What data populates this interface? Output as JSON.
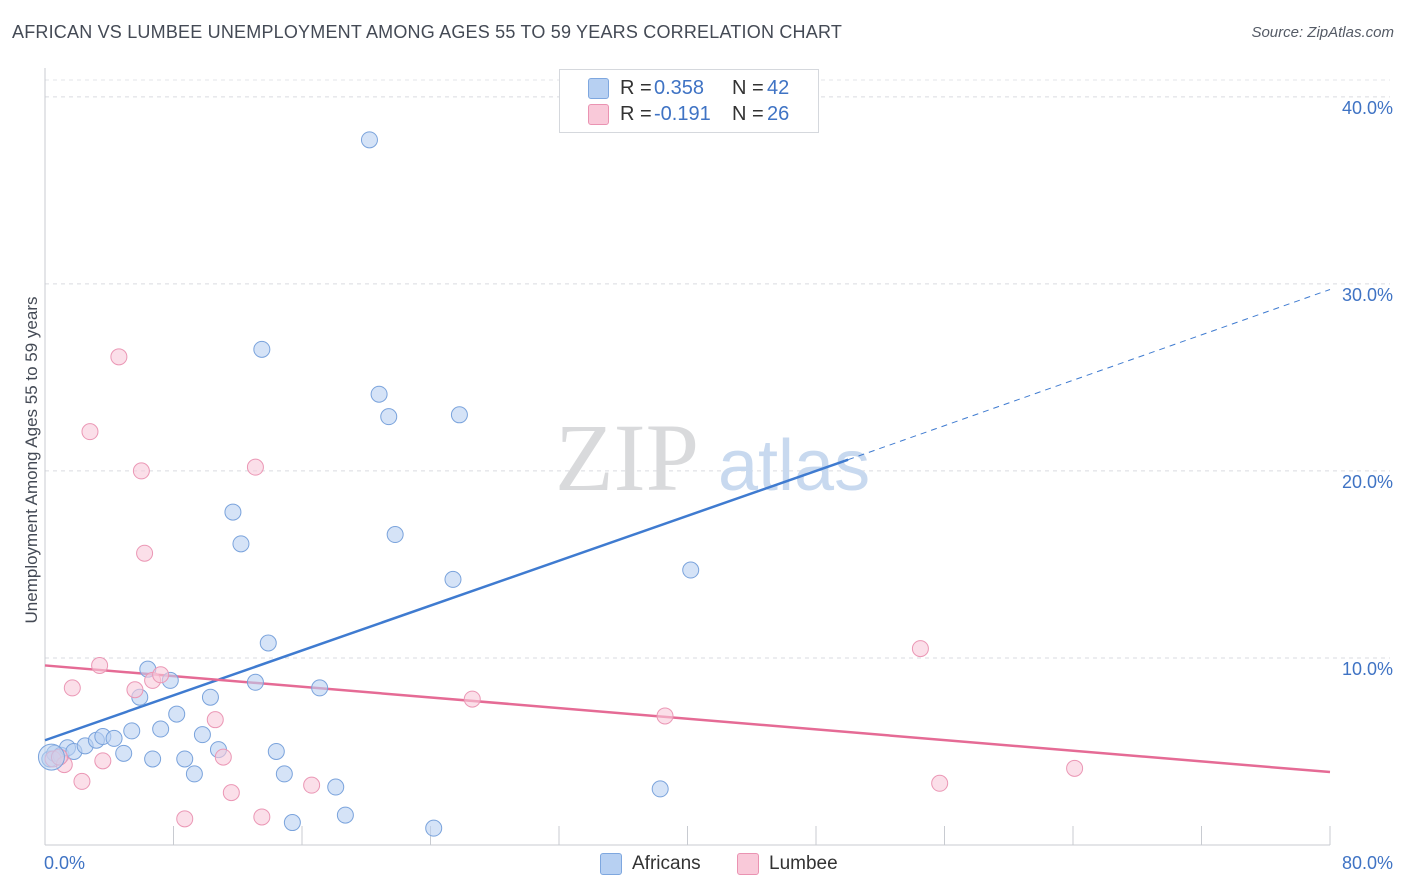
{
  "title": "AFRICAN VS LUMBEE UNEMPLOYMENT AMONG AGES 55 TO 59 YEARS CORRELATION CHART",
  "source": "Source: ZipAtlas.com",
  "watermark": {
    "zip": "ZIP",
    "atlas": "atlas"
  },
  "colors": {
    "africans": "#3f7bd0",
    "lumbee": "#e56b95",
    "africans_fill": "#aac8f0",
    "lumbee_fill": "#f6bcd0",
    "axis_text": "#3f73c4"
  },
  "legend": {
    "rows": [
      {
        "series": "africans",
        "r_label": "R =",
        "r_value": "0.358",
        "n_label": "N =",
        "n_value": "42"
      },
      {
        "series": "lumbee",
        "r_label": "R =",
        "r_value": "-0.191",
        "n_label": "N =",
        "n_value": "26"
      }
    ]
  },
  "bottom_legend": {
    "africans": "Africans",
    "lumbee": "Lumbee"
  },
  "chart_data": {
    "type": "scatter",
    "title": "AFRICAN VS LUMBEE UNEMPLOYMENT AMONG AGES 55 TO 59 YEARS CORRELATION CHART",
    "xlabel": "",
    "ylabel": "Unemployment Among Ages 55 to 59 years",
    "xlim": [
      0,
      80
    ],
    "ylim": [
      0,
      40.9
    ],
    "x_tick_labels": [
      "0.0%",
      "80.0%"
    ],
    "y_ticks": [
      10,
      20,
      30,
      40
    ],
    "y_tick_labels": [
      "10.0%",
      "20.0%",
      "30.0%",
      "40.0%"
    ],
    "series": [
      {
        "name": "Africans",
        "color": "#3f7bd0",
        "points": [
          [
            0.3,
            4.6
          ],
          [
            0.6,
            4.9
          ],
          [
            1.0,
            4.8
          ],
          [
            1.4,
            5.2
          ],
          [
            1.8,
            5.0
          ],
          [
            2.5,
            5.3
          ],
          [
            3.2,
            5.6
          ],
          [
            3.6,
            5.8
          ],
          [
            4.3,
            5.7
          ],
          [
            4.9,
            4.9
          ],
          [
            5.4,
            6.1
          ],
          [
            5.9,
            7.9
          ],
          [
            6.4,
            9.4
          ],
          [
            6.7,
            4.6
          ],
          [
            7.2,
            6.2
          ],
          [
            7.8,
            8.8
          ],
          [
            8.2,
            7.0
          ],
          [
            8.7,
            4.6
          ],
          [
            9.3,
            3.8
          ],
          [
            9.8,
            5.9
          ],
          [
            10.3,
            7.9
          ],
          [
            10.8,
            5.1
          ],
          [
            11.7,
            17.8
          ],
          [
            12.2,
            16.1
          ],
          [
            13.1,
            8.7
          ],
          [
            13.5,
            26.5
          ],
          [
            13.9,
            10.8
          ],
          [
            14.4,
            5.0
          ],
          [
            14.9,
            3.8
          ],
          [
            15.4,
            1.2
          ],
          [
            17.1,
            8.4
          ],
          [
            18.1,
            3.1
          ],
          [
            18.7,
            1.6
          ],
          [
            20.2,
            37.7
          ],
          [
            20.8,
            24.1
          ],
          [
            21.4,
            22.9
          ],
          [
            21.8,
            16.6
          ],
          [
            24.2,
            0.9
          ],
          [
            25.4,
            14.2
          ],
          [
            25.8,
            23.0
          ],
          [
            38.3,
            3.0
          ],
          [
            40.2,
            14.7
          ]
        ]
      },
      {
        "name": "Lumbee",
        "color": "#e56b95",
        "points": [
          [
            0.5,
            4.6
          ],
          [
            1.2,
            4.3
          ],
          [
            1.7,
            8.4
          ],
          [
            2.3,
            3.4
          ],
          [
            2.8,
            22.1
          ],
          [
            3.6,
            4.5
          ],
          [
            4.6,
            26.1
          ],
          [
            5.6,
            8.3
          ],
          [
            6.0,
            20.0
          ],
          [
            6.2,
            15.6
          ],
          [
            6.7,
            8.8
          ],
          [
            7.2,
            9.1
          ],
          [
            8.7,
            1.4
          ],
          [
            10.6,
            6.7
          ],
          [
            11.1,
            4.7
          ],
          [
            11.6,
            2.8
          ],
          [
            13.1,
            20.2
          ],
          [
            13.5,
            1.5
          ],
          [
            16.6,
            3.2
          ],
          [
            26.6,
            7.8
          ],
          [
            38.6,
            6.9
          ],
          [
            54.5,
            10.5
          ],
          [
            55.7,
            3.3
          ],
          [
            64.1,
            4.1
          ],
          [
            0.9,
            4.7
          ],
          [
            3.4,
            9.6
          ]
        ]
      }
    ],
    "trend_lines": [
      {
        "series": "Africans",
        "x_start": 0,
        "y_start": 5.6,
        "x_end": 50,
        "y_end": 20.6,
        "dashed_to_x": 80,
        "dashed_to_y": 29.7
      },
      {
        "series": "Lumbee",
        "x_start": 0,
        "y_start": 9.6,
        "x_end": 80,
        "y_end": 3.9
      }
    ]
  }
}
